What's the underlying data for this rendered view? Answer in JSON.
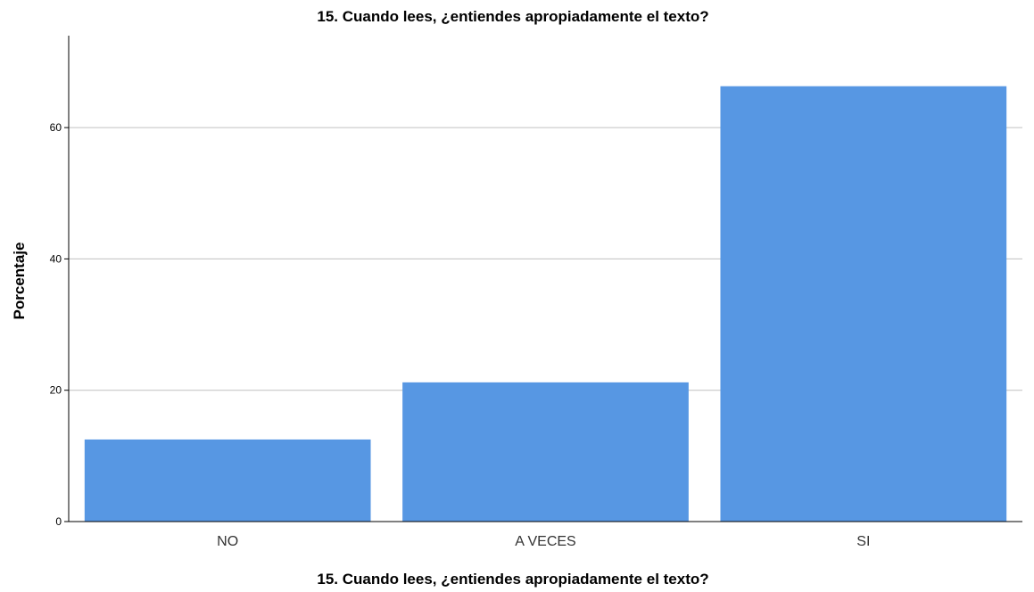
{
  "chart_data": {
    "type": "bar",
    "title": "15. Cuando lees, ¿entiendes apropiadamente el texto?",
    "xlabel": "15. Cuando lees, ¿entiendes apropiadamente el texto?",
    "ylabel": "Porcentaje",
    "categories": [
      "NO",
      "A VECES",
      "SI"
    ],
    "values": [
      12.5,
      21.2,
      66.3
    ],
    "ylim": [
      0,
      74
    ],
    "yticks": [
      0,
      20,
      40,
      60
    ],
    "grid": true,
    "legend": "none",
    "bar_color": "#5797e3"
  }
}
